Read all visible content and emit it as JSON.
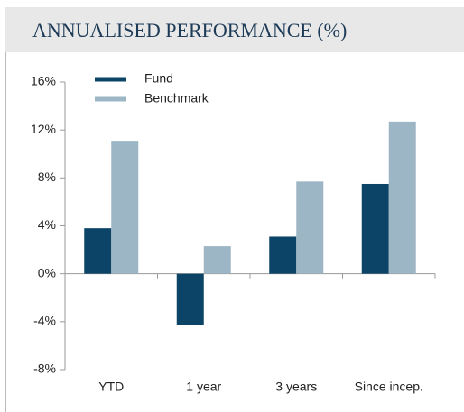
{
  "chart_data": {
    "type": "bar",
    "title": "ANNUALISED PERFORMANCE (%)",
    "categories": [
      "YTD",
      "1 year",
      "3 years",
      "Since incep."
    ],
    "series": [
      {
        "name": "Fund",
        "color": "#0b4467",
        "values": [
          3.8,
          -4.3,
          3.1,
          7.5
        ]
      },
      {
        "name": "Benchmark",
        "color": "#9db6c5",
        "values": [
          11.1,
          2.3,
          7.7,
          12.7
        ]
      }
    ],
    "ylim": [
      -8,
      16
    ],
    "yticks": [
      {
        "value": -8,
        "label": "-8%"
      },
      {
        "value": -4,
        "label": "-4%"
      },
      {
        "value": 0,
        "label": "0%"
      },
      {
        "value": 4,
        "label": "4%"
      },
      {
        "value": 8,
        "label": "8%"
      },
      {
        "value": 12,
        "label": "12%"
      },
      {
        "value": 16,
        "label": "16%"
      }
    ],
    "legend": "top-left"
  }
}
